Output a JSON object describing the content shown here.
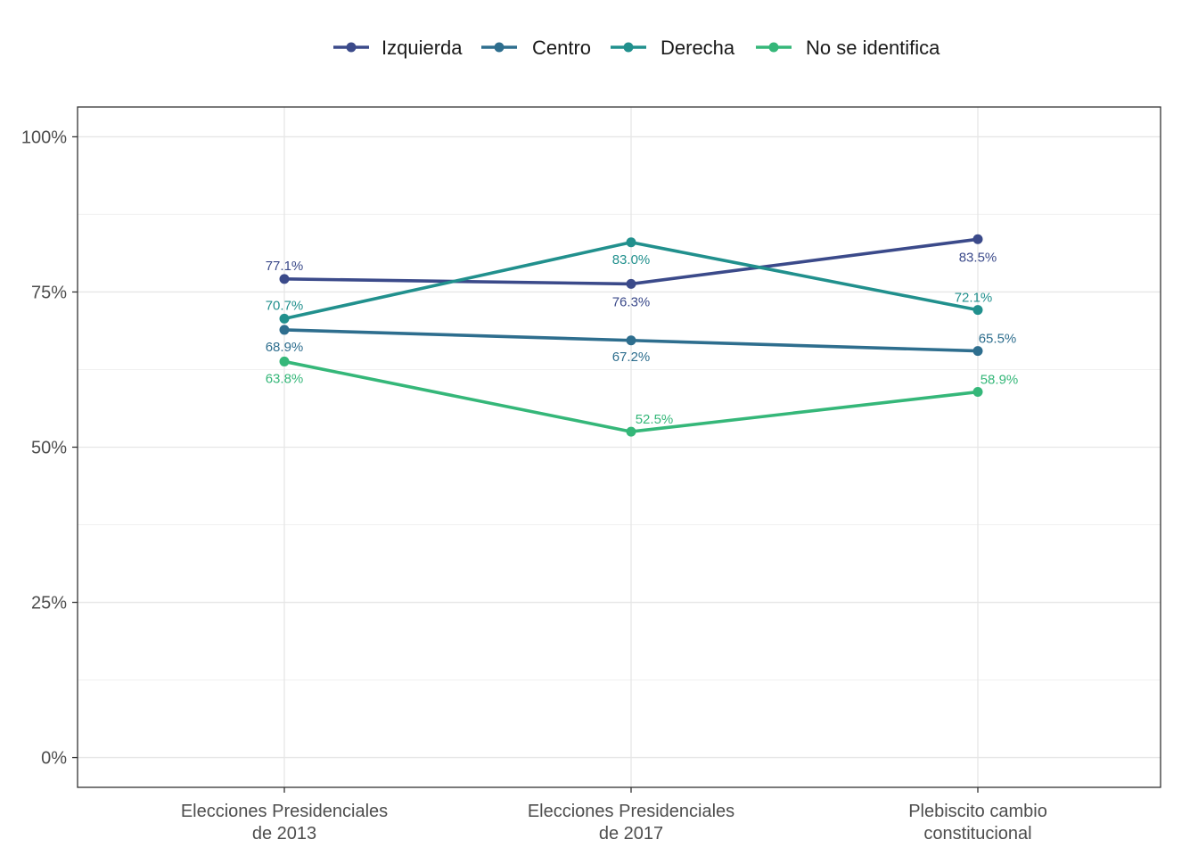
{
  "chart_data": {
    "type": "line",
    "categories": [
      [
        "Elecciones Presidenciales",
        "de 2013"
      ],
      [
        "Elecciones Presidenciales",
        "de 2017"
      ],
      [
        "Plebiscito cambio",
        "constitucional"
      ]
    ],
    "y_ticks": [
      "0%",
      "25%",
      "50%",
      "75%",
      "100%"
    ],
    "y_tick_values": [
      0,
      25,
      50,
      75,
      100
    ],
    "ylim": [
      -4.8,
      104.8
    ],
    "grid": true,
    "legend_position": "top",
    "series": [
      {
        "name": "Izquierda",
        "color": "#3b4a8a",
        "values": [
          77.1,
          76.3,
          83.5
        ],
        "labels": [
          "77.1%",
          "76.3%",
          "83.5%"
        ]
      },
      {
        "name": "Centro",
        "color": "#2e6e8e",
        "values": [
          68.9,
          67.2,
          65.5
        ],
        "labels": [
          "68.9%",
          "67.2%",
          "65.5%"
        ]
      },
      {
        "name": "Derecha",
        "color": "#21908d",
        "values": [
          70.7,
          83.0,
          72.1
        ],
        "labels": [
          "70.7%",
          "83.0%",
          "72.1%"
        ]
      },
      {
        "name": "No se identifica",
        "color": "#35b779",
        "values": [
          63.8,
          52.5,
          58.9
        ],
        "labels": [
          "63.8%",
          "52.5%",
          "58.9%"
        ]
      }
    ]
  }
}
